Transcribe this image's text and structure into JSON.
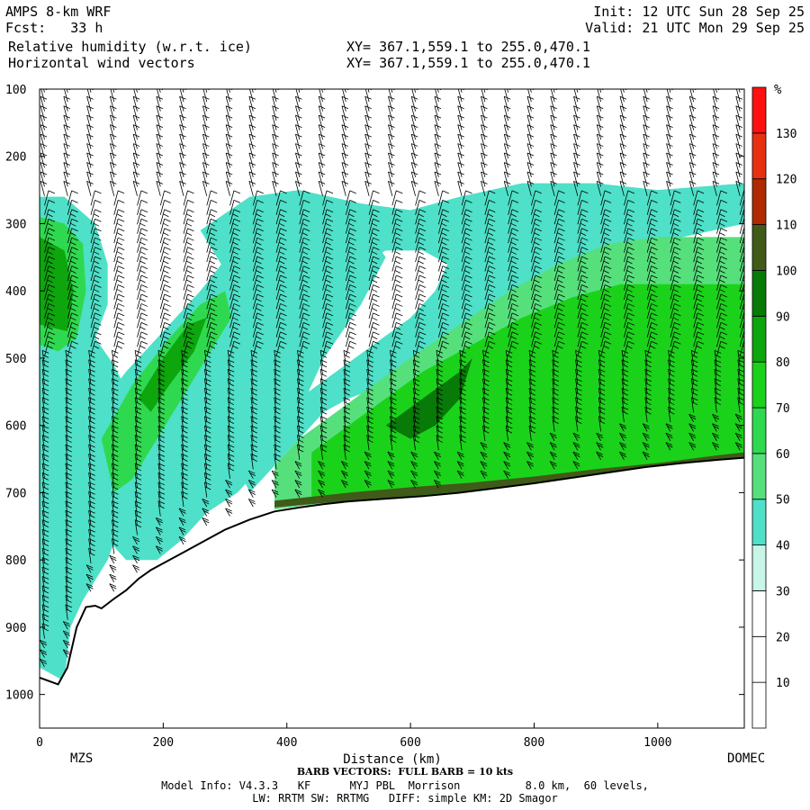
{
  "header": {
    "model": "AMPS 8-km WRF",
    "forecast": "Fcst:   33 h",
    "field1": "Relative humidity (w.r.t. ice)",
    "field2": "Horizontal wind vectors",
    "init": "Init: 12 UTC Sun 28 Sep 25",
    "valid": "Valid: 21 UTC Mon 29 Sep 25",
    "xy1": "XY= 367.1,559.1 to 255.0,470.1",
    "xy2": "XY= 367.1,559.1 to 255.0,470.1"
  },
  "chart_data": {
    "type": "heatmap",
    "xlabel": "Distance (km)",
    "xlim": [
      0,
      1140
    ],
    "x_ticks": [
      0,
      200,
      400,
      600,
      800,
      1000
    ],
    "ylabel": "",
    "ylim": [
      1050,
      100
    ],
    "y_ticks": [
      100,
      200,
      300,
      400,
      500,
      600,
      700,
      800,
      900,
      1000
    ],
    "endpoints": {
      "left": "MZS",
      "right": "DOMEC"
    },
    "colorbar": {
      "unit": "%",
      "levels": [
        10,
        20,
        30,
        40,
        50,
        60,
        70,
        80,
        90,
        100,
        110,
        120,
        130
      ],
      "colors": [
        "#ffffff",
        "#ffffff",
        "#ffffff",
        "#c7f5e8",
        "#4ee0c8",
        "#56e07c",
        "#2fd94f",
        "#1bd21b",
        "#0da60d",
        "#087a08",
        "#405a18",
        "#b02a00",
        "#e83010",
        "#ff1010"
      ]
    },
    "terrain_pressure": [
      [
        0,
        975
      ],
      [
        15,
        980
      ],
      [
        30,
        985
      ],
      [
        45,
        960
      ],
      [
        60,
        900
      ],
      [
        75,
        870
      ],
      [
        90,
        868
      ],
      [
        100,
        872
      ],
      [
        120,
        858
      ],
      [
        140,
        845
      ],
      [
        160,
        828
      ],
      [
        180,
        815
      ],
      [
        200,
        805
      ],
      [
        230,
        790
      ],
      [
        260,
        775
      ],
      [
        300,
        755
      ],
      [
        340,
        740
      ],
      [
        380,
        728
      ],
      [
        420,
        722
      ],
      [
        460,
        717
      ],
      [
        500,
        713
      ],
      [
        560,
        709
      ],
      [
        620,
        705
      ],
      [
        680,
        700
      ],
      [
        740,
        693
      ],
      [
        800,
        686
      ],
      [
        860,
        678
      ],
      [
        920,
        670
      ],
      [
        980,
        662
      ],
      [
        1040,
        656
      ],
      [
        1100,
        651
      ],
      [
        1140,
        648
      ]
    ],
    "rh_regions": [
      {
        "level": 40,
        "points": [
          [
            0,
            260
          ],
          [
            40,
            260
          ],
          [
            90,
            300
          ],
          [
            110,
            360
          ],
          [
            110,
            420
          ],
          [
            90,
            470
          ],
          [
            120,
            510
          ],
          [
            170,
            600
          ],
          [
            150,
            700
          ],
          [
            110,
            800
          ],
          [
            70,
            860
          ],
          [
            50,
            900
          ],
          [
            40,
            980
          ],
          [
            0,
            960
          ]
        ]
      },
      {
        "level": 60,
        "points": [
          [
            0,
            290
          ],
          [
            40,
            300
          ],
          [
            70,
            330
          ],
          [
            75,
            400
          ],
          [
            60,
            470
          ],
          [
            30,
            490
          ],
          [
            0,
            480
          ]
        ]
      },
      {
        "level": 80,
        "points": [
          [
            0,
            320
          ],
          [
            40,
            340
          ],
          [
            55,
            400
          ],
          [
            45,
            460
          ],
          [
            0,
            450
          ]
        ]
      },
      {
        "level": 40,
        "points": [
          [
            90,
            580
          ],
          [
            140,
            520
          ],
          [
            200,
            460
          ],
          [
            260,
            400
          ],
          [
            320,
            330
          ],
          [
            380,
            290
          ],
          [
            440,
            280
          ],
          [
            520,
            300
          ],
          [
            560,
            350
          ],
          [
            520,
            420
          ],
          [
            460,
            500
          ],
          [
            420,
            580
          ],
          [
            370,
            650
          ],
          [
            320,
            700
          ],
          [
            270,
            730
          ],
          [
            230,
            770
          ],
          [
            190,
            800
          ],
          [
            140,
            800
          ],
          [
            100,
            760
          ],
          [
            80,
            680
          ]
        ]
      },
      {
        "level": 60,
        "points": [
          [
            100,
            620
          ],
          [
            150,
            540
          ],
          [
            210,
            470
          ],
          [
            260,
            420
          ],
          [
            300,
            400
          ],
          [
            310,
            440
          ],
          [
            270,
            500
          ],
          [
            230,
            560
          ],
          [
            190,
            620
          ],
          [
            150,
            680
          ],
          [
            120,
            700
          ]
        ]
      },
      {
        "level": 80,
        "points": [
          [
            160,
            560
          ],
          [
            200,
            500
          ],
          [
            240,
            450
          ],
          [
            270,
            440
          ],
          [
            250,
            490
          ],
          [
            210,
            540
          ],
          [
            180,
            580
          ]
        ]
      },
      {
        "level": 40,
        "points": [
          [
            260,
            310
          ],
          [
            340,
            260
          ],
          [
            420,
            250
          ],
          [
            520,
            270
          ],
          [
            600,
            280
          ],
          [
            680,
            260
          ],
          [
            780,
            240
          ],
          [
            900,
            240
          ],
          [
            1000,
            250
          ],
          [
            1140,
            240
          ],
          [
            1140,
            300
          ],
          [
            1040,
            320
          ],
          [
            960,
            360
          ],
          [
            900,
            390
          ],
          [
            860,
            420
          ],
          [
            800,
            440
          ],
          [
            740,
            460
          ],
          [
            680,
            480
          ],
          [
            620,
            510
          ],
          [
            560,
            540
          ],
          [
            500,
            560
          ],
          [
            460,
            580
          ],
          [
            420,
            620
          ],
          [
            380,
            660
          ],
          [
            340,
            700
          ],
          [
            330,
            680
          ],
          [
            360,
            620
          ],
          [
            420,
            560
          ],
          [
            480,
            520
          ],
          [
            540,
            480
          ],
          [
            600,
            440
          ],
          [
            640,
            400
          ],
          [
            660,
            360
          ],
          [
            620,
            340
          ],
          [
            560,
            340
          ],
          [
            520,
            360
          ],
          [
            480,
            380
          ],
          [
            420,
            400
          ],
          [
            380,
            420
          ],
          [
            340,
            400
          ],
          [
            300,
            370
          ]
        ]
      },
      {
        "level": 50,
        "points": [
          [
            380,
            660
          ],
          [
            420,
            620
          ],
          [
            480,
            580
          ],
          [
            540,
            540
          ],
          [
            600,
            500
          ],
          [
            680,
            450
          ],
          [
            760,
            400
          ],
          [
            840,
            360
          ],
          [
            920,
            330
          ],
          [
            1000,
            320
          ],
          [
            1140,
            320
          ],
          [
            1140,
            645
          ],
          [
            1100,
            650
          ],
          [
            1000,
            660
          ],
          [
            900,
            675
          ],
          [
            800,
            688
          ],
          [
            700,
            698
          ],
          [
            600,
            706
          ],
          [
            500,
            712
          ],
          [
            420,
            720
          ],
          [
            380,
            725
          ]
        ]
      },
      {
        "level": 70,
        "points": [
          [
            440,
            640
          ],
          [
            500,
            600
          ],
          [
            560,
            560
          ],
          [
            620,
            520
          ],
          [
            700,
            480
          ],
          [
            780,
            440
          ],
          [
            860,
            410
          ],
          [
            940,
            390
          ],
          [
            1020,
            390
          ],
          [
            1140,
            390
          ],
          [
            1140,
            646
          ],
          [
            1100,
            650
          ],
          [
            1000,
            660
          ],
          [
            900,
            675
          ],
          [
            800,
            688
          ],
          [
            700,
            698
          ],
          [
            600,
            706
          ],
          [
            500,
            712
          ],
          [
            440,
            716
          ]
        ]
      },
      {
        "level": 90,
        "points": [
          [
            560,
            600
          ],
          [
            620,
            560
          ],
          [
            680,
            520
          ],
          [
            700,
            500
          ],
          [
            680,
            560
          ],
          [
            640,
            600
          ],
          [
            600,
            620
          ]
        ]
      },
      {
        "level": 100,
        "points": [
          [
            380,
            712
          ],
          [
            500,
            700
          ],
          [
            600,
            692
          ],
          [
            700,
            685
          ],
          [
            800,
            676
          ],
          [
            900,
            665
          ],
          [
            1000,
            656
          ],
          [
            1100,
            644
          ],
          [
            1140,
            640
          ],
          [
            1140,
            648
          ],
          [
            1100,
            651
          ],
          [
            1000,
            660
          ],
          [
            900,
            672
          ],
          [
            800,
            686
          ],
          [
            700,
            697
          ],
          [
            600,
            705
          ],
          [
            500,
            712
          ],
          [
            380,
            722
          ]
        ]
      }
    ],
    "barbs": {
      "unit": "kts",
      "full_barb_kts": 10
    }
  },
  "footer": {
    "barb_note": "BARB VECTORS:  FULL BARB = 10 kts",
    "line1": "Model Info: V4.3.3   KF      MYJ PBL  Morrison          8.0 km,  60 levels,",
    "line2": "LW: RRTM SW: RRTMG   DIFF: simple KM: 2D Smagor"
  }
}
